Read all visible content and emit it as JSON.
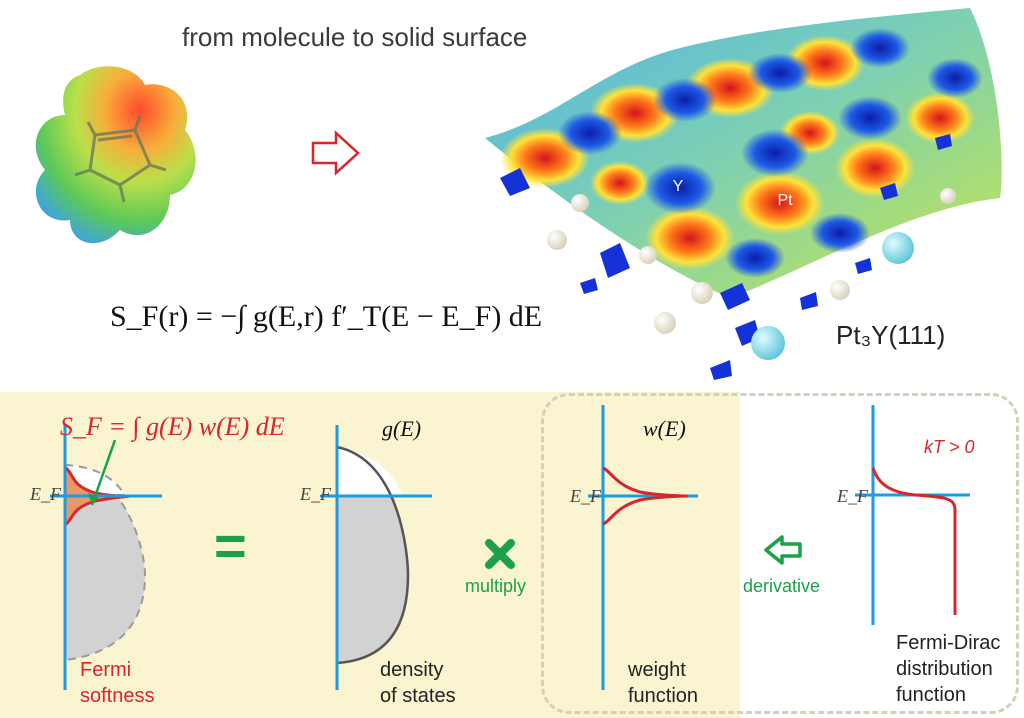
{
  "header": {
    "title": "from molecule to solid surface"
  },
  "surface": {
    "label_y": "Y",
    "label_pt": "Pt",
    "material_label": "Pt₃Y(111)"
  },
  "formula_main": "S_F(r) = −∫ g(E,r) f′_T(E − E_F) dE",
  "panel": {
    "softness_formula": "S_F = ∫ g(E) w(E) dE",
    "ef_label": "E_F",
    "equals_sign": "=",
    "dos_label": "g(E)",
    "weight_label": "w(E)",
    "kt_label": "kT > 0",
    "multiply_label": "multiply",
    "derivative_label": "derivative",
    "captions": {
      "fermi_softness": [
        "Fermi",
        "softness"
      ],
      "density_of_states": [
        "density",
        "of states"
      ],
      "weight_function": [
        "weight",
        "function"
      ],
      "fermi_dirac": [
        "Fermi-Dirac",
        "distribution",
        "function"
      ]
    }
  },
  "colors": {
    "accent_blue": "#1b9be0",
    "curve_red": "#d9262b",
    "green": "#1aa14a",
    "panel_bg": "#faf4d0"
  }
}
